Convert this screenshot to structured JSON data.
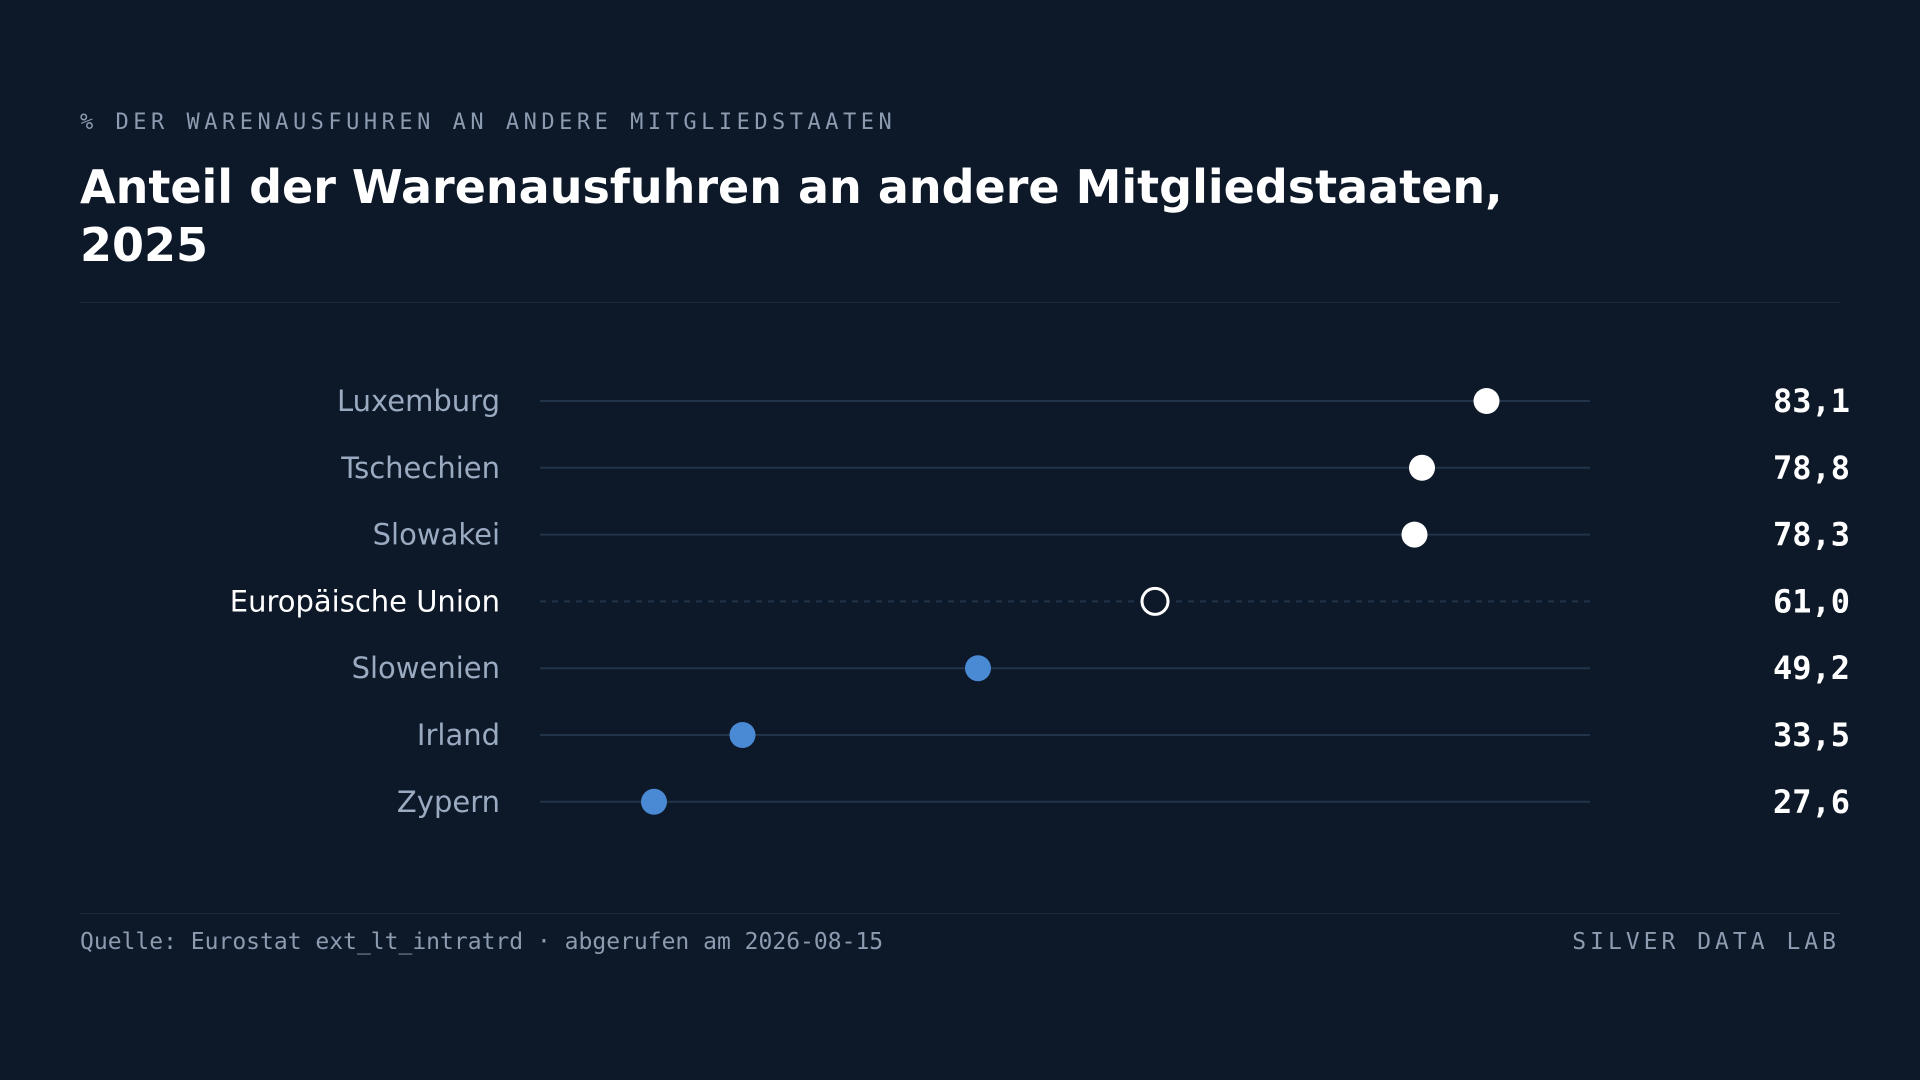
{
  "header": {
    "eyebrow": "% DER WARENAUSFUHREN AN ANDERE MITGLIEDSTAATEN",
    "title": "Anteil der Warenausfuhren an andere Mitgliedstaaten, 2025"
  },
  "footer": {
    "source": "Quelle: Eurostat ext_lt_intratrd · abgerufen am 2026-08-15",
    "brand": "SILVER DATA LAB"
  },
  "colors": {
    "background": "#0d1829",
    "high_dot": "#ffffff",
    "low_dot": "#4a8ad4",
    "reference_dot_stroke": "#ffffff",
    "track": "#223449",
    "label_muted": "#9aaac0",
    "label_reference": "#ffffff",
    "value_text": "#ffffff"
  },
  "chart_data": {
    "type": "dot",
    "title": "Anteil der Warenausfuhren an andere Mitgliedstaaten, 2025",
    "unit_label": "% DER WARENAUSFUHREN AN ANDERE MITGLIEDSTAATEN",
    "xlim": [
      20,
      90
    ],
    "grid": false,
    "legend": "none",
    "categories": [
      "Luxemburg",
      "Tschechien",
      "Slowakei",
      "Europäische Union",
      "Slowenien",
      "Irland",
      "Zypern"
    ],
    "values": [
      83.1,
      78.8,
      78.3,
      61.0,
      49.2,
      33.5,
      27.6
    ],
    "value_labels": [
      "83,1",
      "78,8",
      "78,3",
      "61,0",
      "49,2",
      "33,5",
      "27,6"
    ],
    "reference_category": "Europäische Union",
    "reference_value": 61.0
  }
}
